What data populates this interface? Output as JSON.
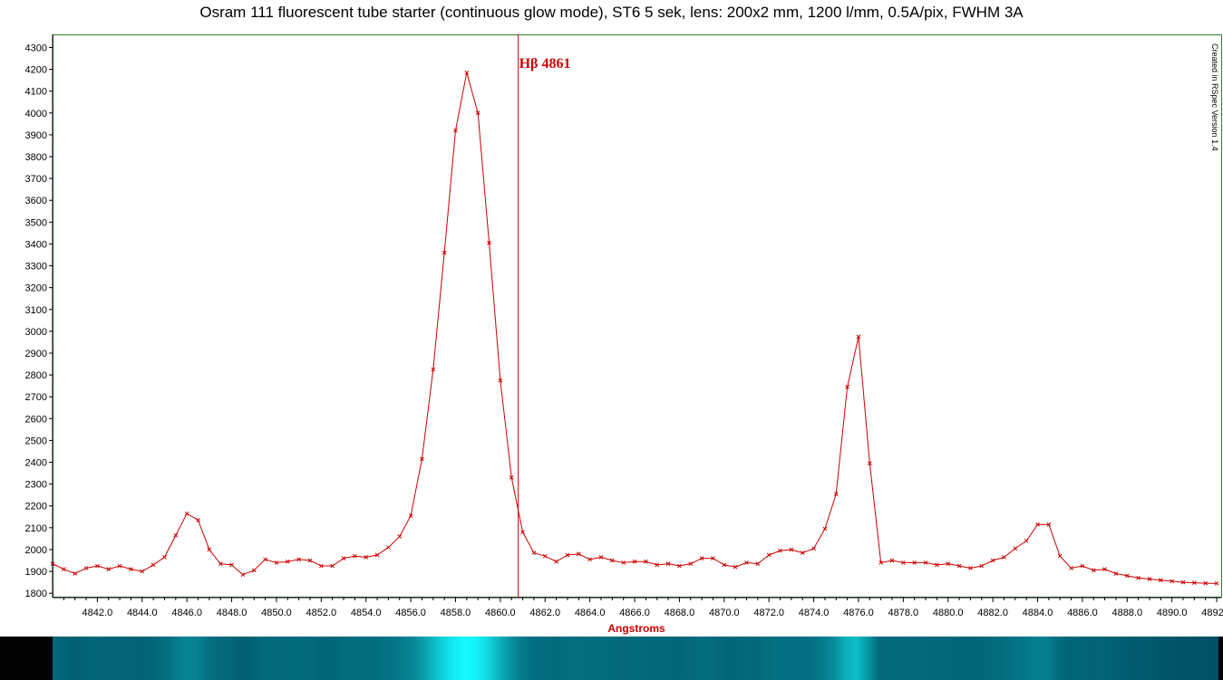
{
  "chart_data": {
    "type": "line",
    "title": "Osram 111 fluorescent tube starter (continuous glow mode), ST6 5 sek,  lens: 200x2 mm, 1200 l/mm, 0.5A/pix, FWHM 3A",
    "xlabel": "Angstroms",
    "ylabel": "",
    "xlim": [
      4840.0,
      4892.2
    ],
    "ylim": [
      1780,
      4360
    ],
    "x_ticks": [
      "4842.0",
      "4844.0",
      "4846.0",
      "4848.0",
      "4850.0",
      "4852.0",
      "4854.0",
      "4856.0",
      "4858.0",
      "4860.0",
      "4862.0",
      "4864.0",
      "4866.0",
      "4868.0",
      "4870.0",
      "4872.0",
      "4874.0",
      "4876.0",
      "4878.0",
      "4880.0",
      "4882.0",
      "4884.0",
      "4886.0",
      "4888.0",
      "4890.0",
      "4892.0"
    ],
    "y_ticks": [
      "1800",
      "1900",
      "2000",
      "2100",
      "2200",
      "2300",
      "2400",
      "2500",
      "2600",
      "2700",
      "2800",
      "2900",
      "3000",
      "3100",
      "3200",
      "3300",
      "3400",
      "3500",
      "3600",
      "3700",
      "3800",
      "3900",
      "4000",
      "4100",
      "4200",
      "4300"
    ],
    "grid": false,
    "marker": "x",
    "annotations": [
      {
        "label": "Hβ 4861",
        "x": 4860.8
      }
    ],
    "credit": "Created in RSpec Version 1.4",
    "series": [
      {
        "name": "",
        "color": "#cc0000",
        "x": [
          4840.0,
          4840.5,
          4841.0,
          4841.5,
          4842.0,
          4842.5,
          4843.0,
          4843.5,
          4844.0,
          4844.5,
          4845.0,
          4845.5,
          4846.0,
          4846.5,
          4847.0,
          4847.5,
          4848.0,
          4848.5,
          4849.0,
          4849.5,
          4850.0,
          4850.5,
          4851.0,
          4851.5,
          4852.0,
          4852.5,
          4853.0,
          4853.5,
          4854.0,
          4854.5,
          4855.0,
          4855.5,
          4856.0,
          4856.5,
          4857.0,
          4857.5,
          4858.0,
          4858.5,
          4859.0,
          4859.5,
          4860.0,
          4860.5,
          4861.0,
          4861.5,
          4862.0,
          4862.5,
          4863.0,
          4863.5,
          4864.0,
          4864.5,
          4865.0,
          4865.5,
          4866.0,
          4866.5,
          4867.0,
          4867.5,
          4868.0,
          4868.5,
          4869.0,
          4869.5,
          4870.0,
          4870.5,
          4871.0,
          4871.5,
          4872.0,
          4872.5,
          4873.0,
          4873.5,
          4874.0,
          4874.5,
          4875.0,
          4875.5,
          4876.0,
          4876.5,
          4877.0,
          4877.5,
          4878.0,
          4878.5,
          4879.0,
          4879.5,
          4880.0,
          4880.5,
          4881.0,
          4881.5,
          4882.0,
          4882.5,
          4883.0,
          4883.5,
          4884.0,
          4884.5,
          4885.0,
          4885.5,
          4886.0,
          4886.5,
          4887.0,
          4887.5,
          4888.0,
          4888.5,
          4889.0,
          4889.5,
          4890.0,
          4890.5,
          4891.0,
          4891.5,
          4892.0
        ],
        "values": [
          1935,
          1910,
          1890,
          1915,
          1925,
          1910,
          1925,
          1910,
          1900,
          1930,
          1965,
          2065,
          2165,
          2135,
          2000,
          1935,
          1930,
          1885,
          1905,
          1955,
          1940,
          1945,
          1955,
          1950,
          1925,
          1925,
          1960,
          1970,
          1965,
          1975,
          2010,
          2060,
          2155,
          2415,
          2825,
          3360,
          3920,
          4185,
          4000,
          3405,
          2775,
          2330,
          2080,
          1985,
          1970,
          1945,
          1975,
          1980,
          1955,
          1965,
          1950,
          1940,
          1945,
          1945,
          1930,
          1935,
          1925,
          1935,
          1960,
          1960,
          1930,
          1920,
          1940,
          1935,
          1975,
          1995,
          2000,
          1985,
          2005,
          2095,
          2255,
          2745,
          2975,
          2395,
          1940,
          1950,
          1940,
          1940,
          1940,
          1930,
          1935,
          1925,
          1915,
          1925,
          1950,
          1965,
          2005,
          2040,
          2115,
          2115,
          1970,
          1915,
          1925,
          1905,
          1910,
          1890,
          1880,
          1870,
          1865,
          1860,
          1855,
          1850,
          1848,
          1846,
          1845
        ]
      }
    ]
  }
}
